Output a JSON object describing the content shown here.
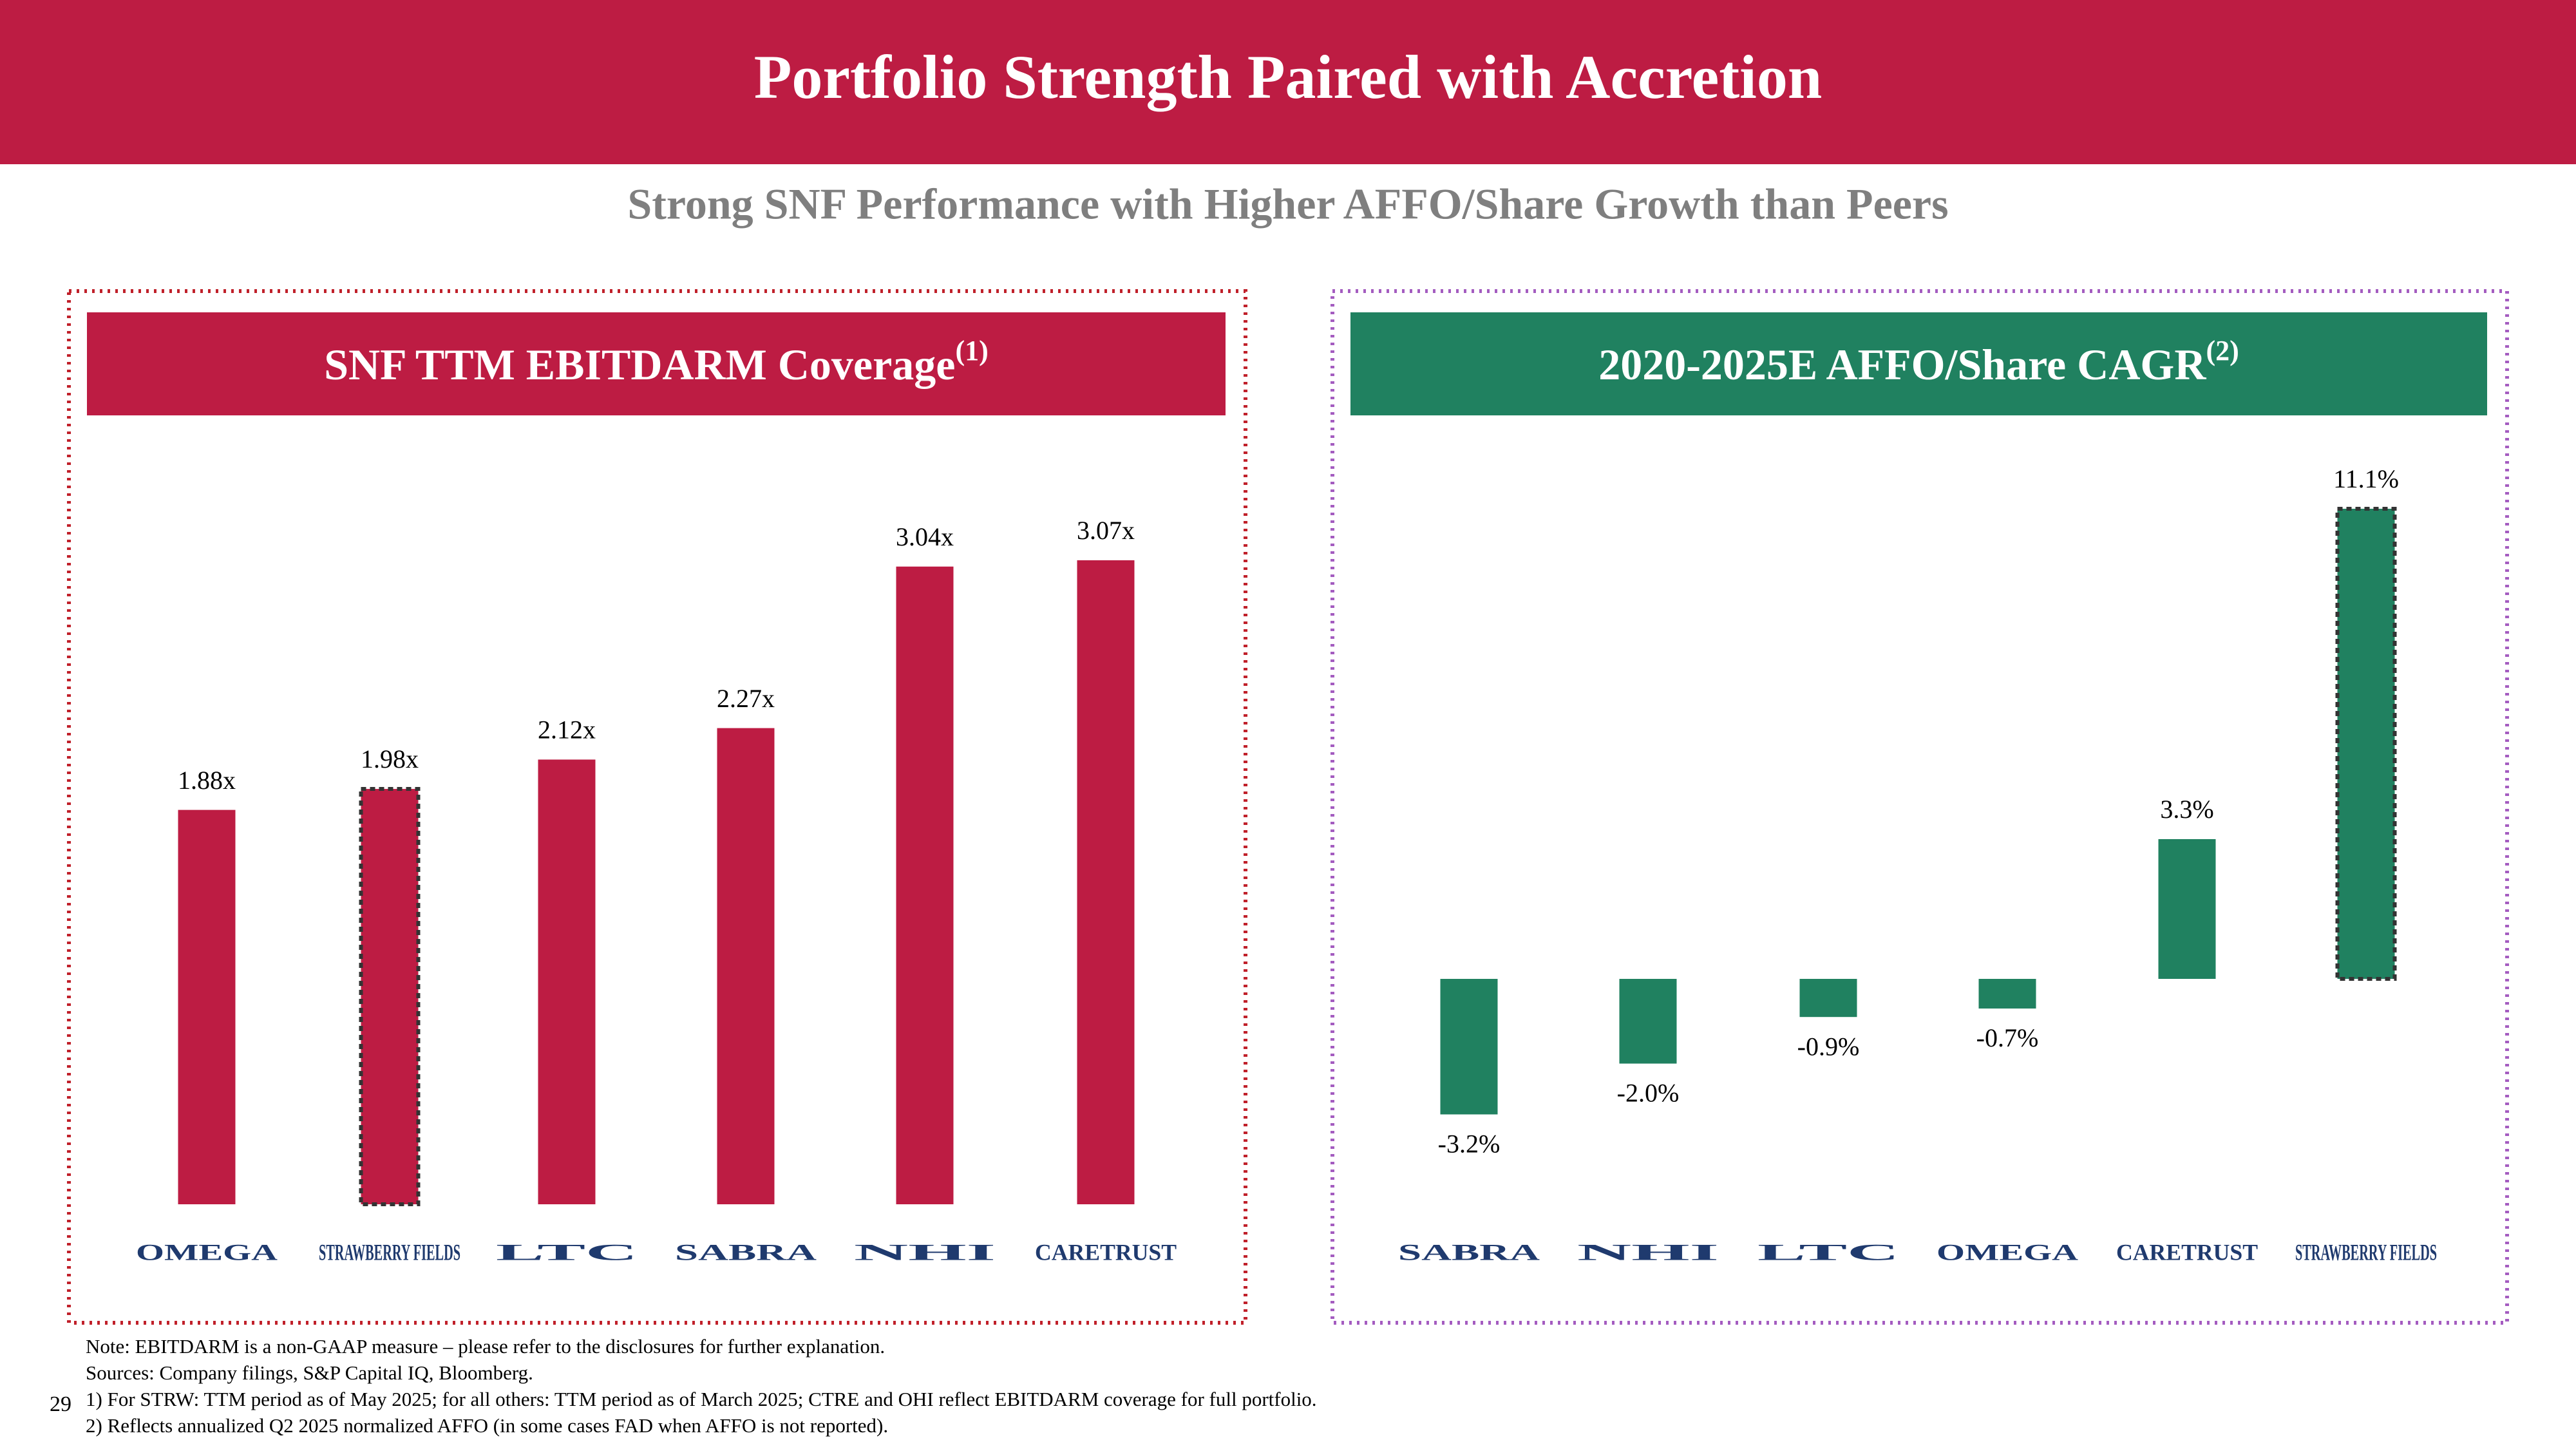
{
  "header": {
    "title": "Portfolio Strength Paired with Accretion"
  },
  "subtitle": "Strong SNF Performance with Higher AFFO/Share Growth than Peers",
  "chart_data": [
    {
      "type": "bar",
      "title": "SNF TTM EBITDARM Coverage",
      "title_superscript": "(1)",
      "color": "#bd1c43",
      "band_color": "#bd1c43",
      "categories": [
        "OMEGA",
        "STRAWBERRY FIELDS",
        "LTC",
        "SABRA",
        "NHI",
        "CARETRUST"
      ],
      "values": [
        1.88,
        1.98,
        2.12,
        2.27,
        3.04,
        3.07
      ],
      "value_labels": [
        "1.88x",
        "1.98x",
        "2.12x",
        "2.27x",
        "3.04x",
        "3.07x"
      ],
      "highlight_index": 1
    },
    {
      "type": "bar",
      "title": "2020-2025E AFFO/Share CAGR",
      "title_superscript": "(2)",
      "color": "#208160",
      "band_color": "#208160",
      "categories": [
        "SABRA",
        "NHI",
        "LTC",
        "OMEGA",
        "CARETRUST",
        "STRAWBERRY FIELDS"
      ],
      "values": [
        -3.2,
        -2.0,
        -0.9,
        -0.7,
        3.3,
        11.1
      ],
      "value_labels": [
        "-3.2%",
        "-2.0%",
        "-0.9%",
        "-0.7%",
        "3.3%",
        "11.1%"
      ],
      "highlight_index": 5
    }
  ],
  "footnotes": [
    "Note: EBITDARM is a non-GAAP measure – please refer to the disclosures for further explanation.",
    "Sources: Company filings, S&P Capital IQ, Bloomberg.",
    "1) For STRW: TTM period as of May 2025; for all others: TTM period as of March 2025; CTRE and OHI reflect EBITDARM coverage for full portfolio.",
    "2) Reflects annualized Q2 2025 normalized AFFO (in some cases FAD when AFFO is not reported)."
  ],
  "page_number": "29"
}
